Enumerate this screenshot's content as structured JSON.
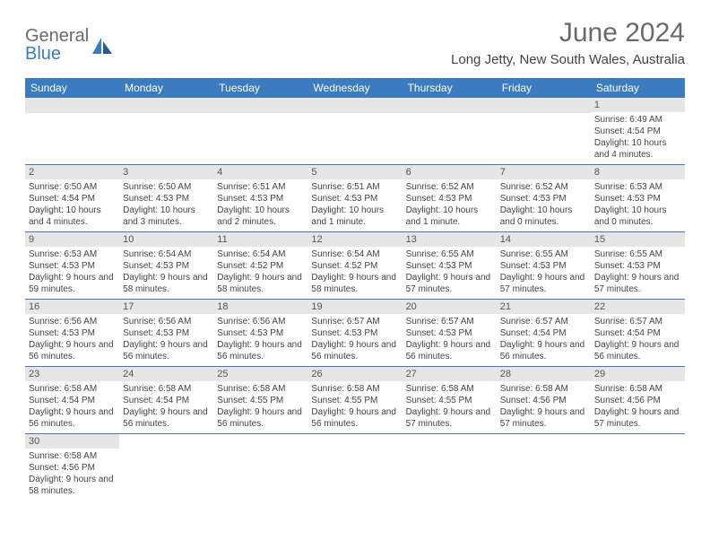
{
  "logo": {
    "part1": "General",
    "part2": "Blue"
  },
  "title": "June 2024",
  "location": "Long Jetty, New South Wales, Australia",
  "colors": {
    "header_bg": "#3b7bbf",
    "daynum_bg": "#e6e6e6",
    "text": "#444444"
  },
  "weekdays": [
    "Sunday",
    "Monday",
    "Tuesday",
    "Wednesday",
    "Thursday",
    "Friday",
    "Saturday"
  ],
  "weeks": [
    [
      null,
      null,
      null,
      null,
      null,
      null,
      {
        "n": "1",
        "sr": "6:49 AM",
        "ss": "4:54 PM",
        "dl": "10 hours and 4 minutes."
      }
    ],
    [
      {
        "n": "2",
        "sr": "6:50 AM",
        "ss": "4:54 PM",
        "dl": "10 hours and 4 minutes."
      },
      {
        "n": "3",
        "sr": "6:50 AM",
        "ss": "4:53 PM",
        "dl": "10 hours and 3 minutes."
      },
      {
        "n": "4",
        "sr": "6:51 AM",
        "ss": "4:53 PM",
        "dl": "10 hours and 2 minutes."
      },
      {
        "n": "5",
        "sr": "6:51 AM",
        "ss": "4:53 PM",
        "dl": "10 hours and 1 minute."
      },
      {
        "n": "6",
        "sr": "6:52 AM",
        "ss": "4:53 PM",
        "dl": "10 hours and 1 minute."
      },
      {
        "n": "7",
        "sr": "6:52 AM",
        "ss": "4:53 PM",
        "dl": "10 hours and 0 minutes."
      },
      {
        "n": "8",
        "sr": "6:53 AM",
        "ss": "4:53 PM",
        "dl": "10 hours and 0 minutes."
      }
    ],
    [
      {
        "n": "9",
        "sr": "6:53 AM",
        "ss": "4:53 PM",
        "dl": "9 hours and 59 minutes."
      },
      {
        "n": "10",
        "sr": "6:54 AM",
        "ss": "4:53 PM",
        "dl": "9 hours and 58 minutes."
      },
      {
        "n": "11",
        "sr": "6:54 AM",
        "ss": "4:52 PM",
        "dl": "9 hours and 58 minutes."
      },
      {
        "n": "12",
        "sr": "6:54 AM",
        "ss": "4:52 PM",
        "dl": "9 hours and 58 minutes."
      },
      {
        "n": "13",
        "sr": "6:55 AM",
        "ss": "4:53 PM",
        "dl": "9 hours and 57 minutes."
      },
      {
        "n": "14",
        "sr": "6:55 AM",
        "ss": "4:53 PM",
        "dl": "9 hours and 57 minutes."
      },
      {
        "n": "15",
        "sr": "6:55 AM",
        "ss": "4:53 PM",
        "dl": "9 hours and 57 minutes."
      }
    ],
    [
      {
        "n": "16",
        "sr": "6:56 AM",
        "ss": "4:53 PM",
        "dl": "9 hours and 56 minutes."
      },
      {
        "n": "17",
        "sr": "6:56 AM",
        "ss": "4:53 PM",
        "dl": "9 hours and 56 minutes."
      },
      {
        "n": "18",
        "sr": "6:56 AM",
        "ss": "4:53 PM",
        "dl": "9 hours and 56 minutes."
      },
      {
        "n": "19",
        "sr": "6:57 AM",
        "ss": "4:53 PM",
        "dl": "9 hours and 56 minutes."
      },
      {
        "n": "20",
        "sr": "6:57 AM",
        "ss": "4:53 PM",
        "dl": "9 hours and 56 minutes."
      },
      {
        "n": "21",
        "sr": "6:57 AM",
        "ss": "4:54 PM",
        "dl": "9 hours and 56 minutes."
      },
      {
        "n": "22",
        "sr": "6:57 AM",
        "ss": "4:54 PM",
        "dl": "9 hours and 56 minutes."
      }
    ],
    [
      {
        "n": "23",
        "sr": "6:58 AM",
        "ss": "4:54 PM",
        "dl": "9 hours and 56 minutes."
      },
      {
        "n": "24",
        "sr": "6:58 AM",
        "ss": "4:54 PM",
        "dl": "9 hours and 56 minutes."
      },
      {
        "n": "25",
        "sr": "6:58 AM",
        "ss": "4:55 PM",
        "dl": "9 hours and 56 minutes."
      },
      {
        "n": "26",
        "sr": "6:58 AM",
        "ss": "4:55 PM",
        "dl": "9 hours and 56 minutes."
      },
      {
        "n": "27",
        "sr": "6:58 AM",
        "ss": "4:55 PM",
        "dl": "9 hours and 57 minutes."
      },
      {
        "n": "28",
        "sr": "6:58 AM",
        "ss": "4:56 PM",
        "dl": "9 hours and 57 minutes."
      },
      {
        "n": "29",
        "sr": "6:58 AM",
        "ss": "4:56 PM",
        "dl": "9 hours and 57 minutes."
      }
    ],
    [
      {
        "n": "30",
        "sr": "6:58 AM",
        "ss": "4:56 PM",
        "dl": "9 hours and 58 minutes."
      },
      null,
      null,
      null,
      null,
      null,
      null
    ]
  ],
  "labels": {
    "sunrise": "Sunrise:",
    "sunset": "Sunset:",
    "daylight": "Daylight:"
  }
}
